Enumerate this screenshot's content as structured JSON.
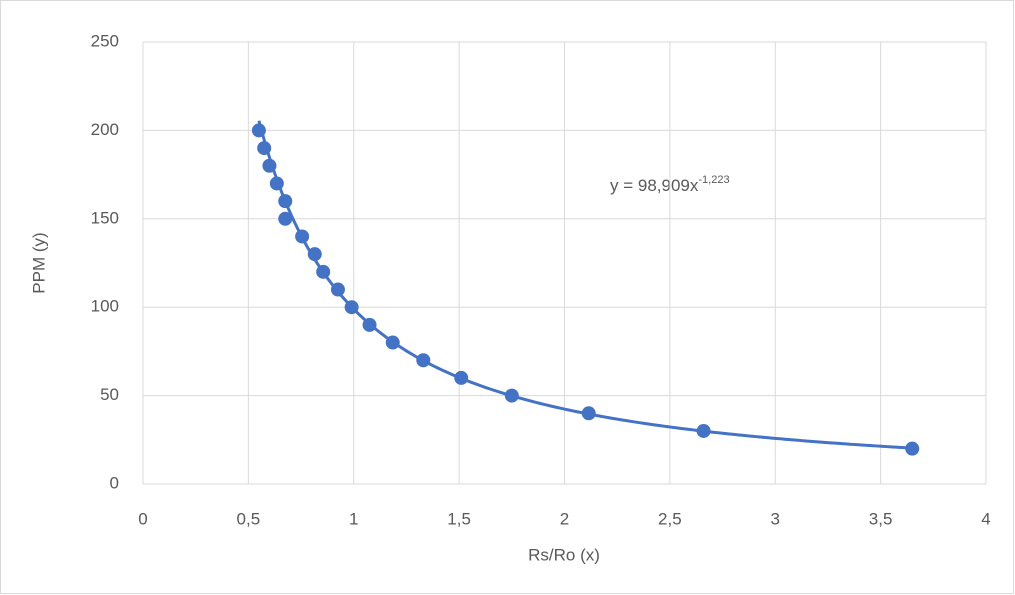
{
  "chart_data": {
    "type": "scatter",
    "x_label": "Rs/Ro (x)",
    "y_label": "PPM (y)",
    "series": [
      {
        "color": "#4472c4",
        "x": [
          0.55,
          0.575,
          0.6,
          0.635,
          0.675,
          0.675,
          0.755,
          0.815,
          0.855,
          0.925,
          0.99,
          1.075,
          1.185,
          1.33,
          1.51,
          1.75,
          2.115,
          2.66,
          3.65
        ],
        "values": [
          200,
          190,
          180,
          170,
          160,
          150,
          140,
          130,
          120,
          110,
          100,
          90,
          80,
          70,
          60,
          50,
          40,
          30,
          20
        ]
      }
    ],
    "trendline": {
      "coefficient": 98.909,
      "exponent": -1.223,
      "label": "y = 98,909x",
      "label_sup": "-1,223"
    },
    "xlim": [
      0,
      4
    ],
    "xticks": [
      0,
      {
        "value": 0.5,
        "label": "0,5"
      },
      1,
      {
        "value": 1.5,
        "label": "1,5"
      },
      2,
      {
        "value": 2.5,
        "label": "2,5"
      },
      3,
      {
        "value": 3.5,
        "label": "3,5"
      },
      4
    ],
    "ylim": [
      0,
      250
    ],
    "yticks": [
      0,
      50,
      100,
      150,
      200,
      250
    ],
    "grid": true
  }
}
